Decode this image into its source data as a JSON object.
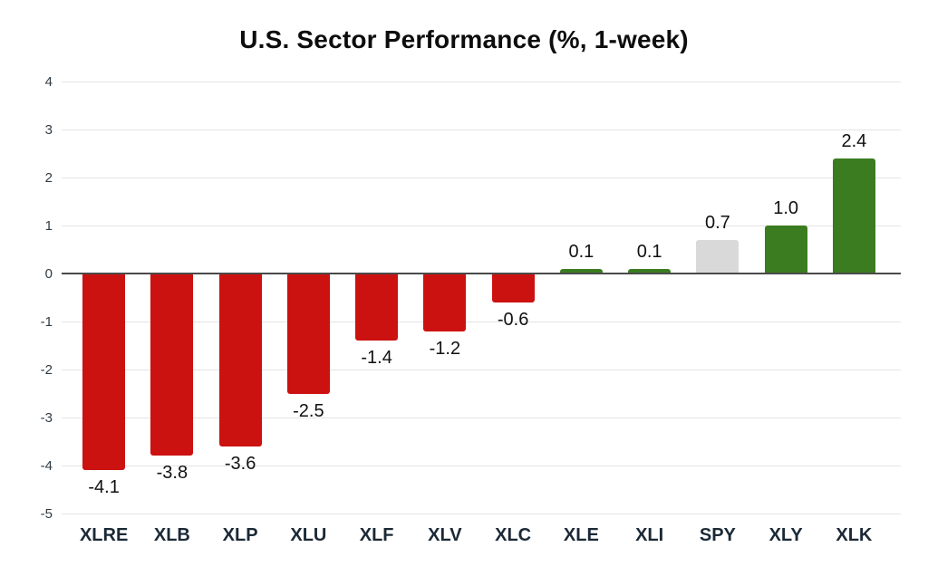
{
  "chart_data": {
    "type": "bar",
    "title": "U.S. Sector Performance (%, 1-week)",
    "categories": [
      "XLRE",
      "XLB",
      "XLP",
      "XLU",
      "XLF",
      "XLV",
      "XLC",
      "XLE",
      "XLI",
      "SPY",
      "XLY",
      "XLK"
    ],
    "values": [
      -4.1,
      -3.8,
      -3.6,
      -2.5,
      -1.4,
      -1.2,
      -0.6,
      0.1,
      0.1,
      0.7,
      1.0,
      2.4
    ],
    "value_labels": [
      "-4.1",
      "-3.8",
      "-3.6",
      "-2.5",
      "-1.4",
      "-1.2",
      "-0.6",
      "0.1",
      "0.1",
      "0.7",
      "1.0",
      "2.4"
    ],
    "bar_colors": [
      "#cc1111",
      "#cc1111",
      "#cc1111",
      "#cc1111",
      "#cc1111",
      "#cc1111",
      "#cc1111",
      "#3a7c1f",
      "#3a7c1f",
      "#d9d9d9",
      "#3a7c1f",
      "#3a7c1f"
    ],
    "colors": {
      "negative": "#cc1111",
      "positive": "#3a7c1f",
      "benchmark": "#d9d9d9",
      "gridline": "#e4e4e4",
      "zero_line": "#4a4a4a",
      "x_label": "#1b2936",
      "y_tick": "#2f3a44"
    },
    "xlabel": "",
    "ylabel": "",
    "ylim": [
      -5,
      4
    ],
    "yticks": [
      4,
      3,
      2,
      1,
      0,
      -1,
      -2,
      -3,
      -4,
      -5
    ],
    "grid": true,
    "legend": "none"
  }
}
